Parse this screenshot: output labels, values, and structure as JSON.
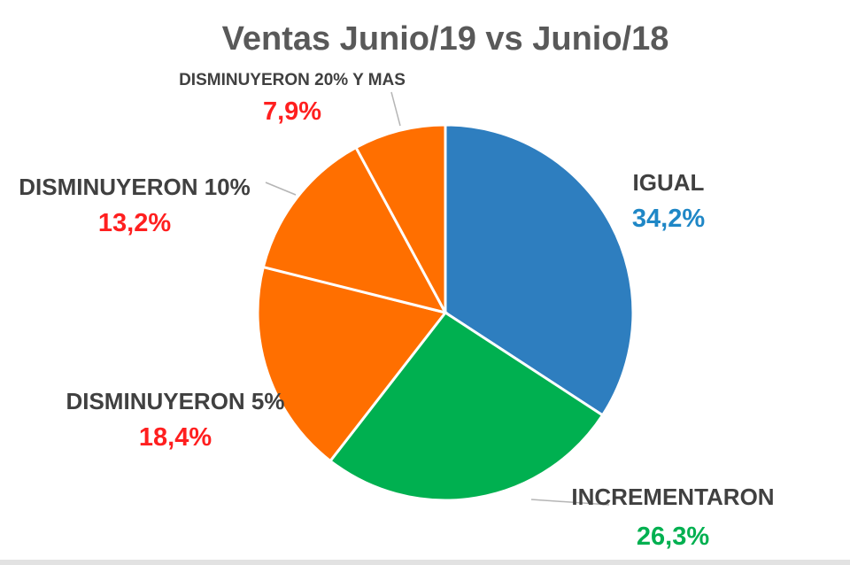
{
  "chart_data": {
    "type": "pie",
    "title": "Ventas Junio/19 vs Junio/18",
    "slices": [
      {
        "label": "IGUAL",
        "value": 34.2,
        "value_label": "34,2%",
        "color": "#2e7ebf",
        "value_color": "#1f87c6"
      },
      {
        "label": "INCREMENTARON",
        "value": 26.3,
        "value_label": "26,3%",
        "color": "#00b050",
        "value_color": "#00b050"
      },
      {
        "label": "DISMINUYERON 5%",
        "value": 18.4,
        "value_label": "18,4%",
        "color": "#ff6f00",
        "value_color": "#ff1f1f"
      },
      {
        "label": "DISMINUYERON 10%",
        "value": 13.2,
        "value_label": "13,2%",
        "color": "#ff6f00",
        "value_color": "#ff1f1f"
      },
      {
        "label": "DISMINUYERON 20% Y MAS",
        "value": 7.9,
        "value_label": "7,9%",
        "color": "#ff6f00",
        "value_color": "#ff1f1f"
      }
    ],
    "start_angle": "12 o'clock",
    "direction": "clockwise",
    "legend": "none",
    "grid": false
  }
}
